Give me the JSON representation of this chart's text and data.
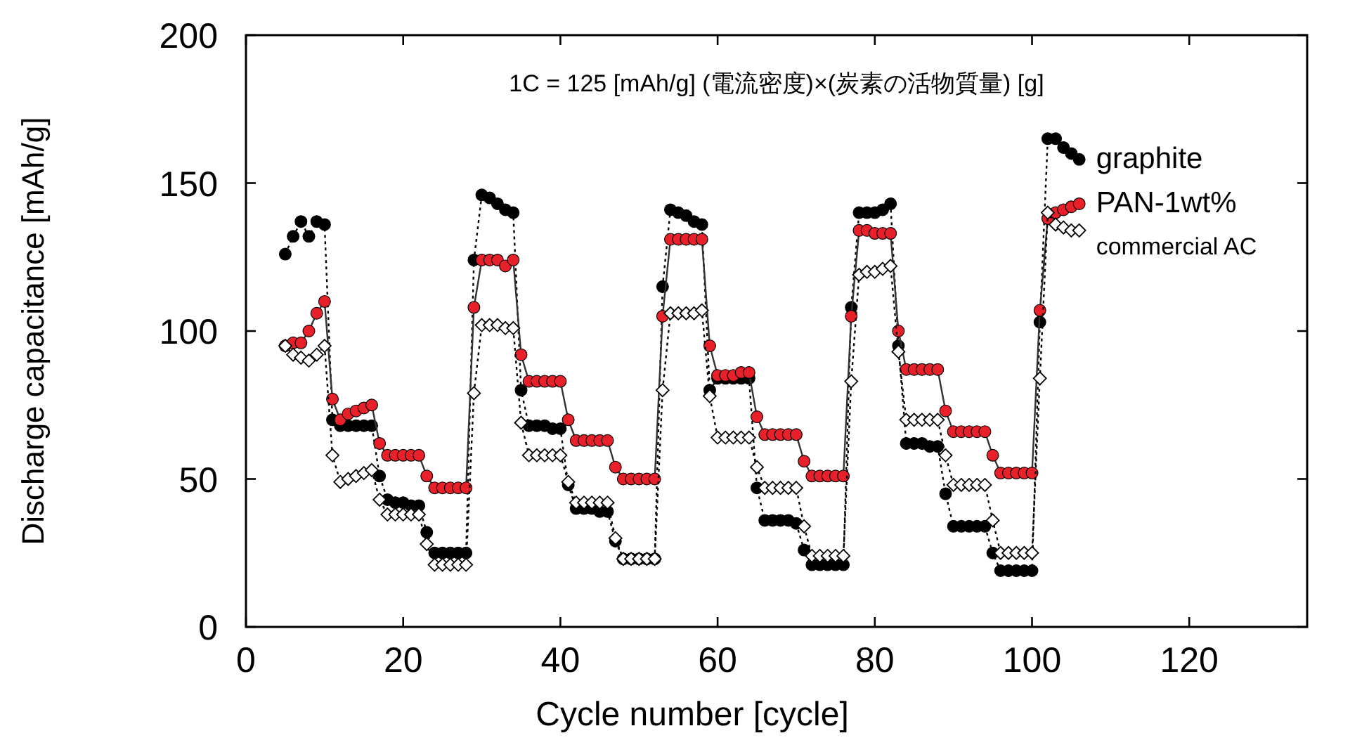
{
  "chart_data": {
    "type": "line",
    "xlabel": "Cycle number [cycle]",
    "ylabel": "Discharge capacitance [mAh/g]",
    "annotations": [
      "1C = 125 [mAh/g] (電流密度)×(炭素の活物質量) [g]"
    ],
    "x": [
      5,
      6,
      7,
      8,
      9,
      10,
      11,
      12,
      13,
      14,
      15,
      16,
      17,
      18,
      19,
      20,
      21,
      22,
      23,
      24,
      25,
      26,
      27,
      28,
      29,
      30,
      31,
      32,
      33,
      34,
      35,
      36,
      37,
      38,
      39,
      40,
      41,
      42,
      43,
      44,
      45,
      46,
      47,
      48,
      49,
      50,
      51,
      52,
      53,
      54,
      55,
      56,
      57,
      58,
      59,
      60,
      61,
      62,
      63,
      64,
      65,
      66,
      67,
      68,
      69,
      70,
      71,
      72,
      73,
      74,
      75,
      76,
      77,
      78,
      79,
      80,
      81,
      82,
      83,
      84,
      85,
      86,
      87,
      88,
      89,
      90,
      91,
      92,
      93,
      94,
      95,
      96,
      97,
      98,
      99,
      100,
      101,
      102,
      103,
      104,
      105,
      106
    ],
    "xlim": [
      0,
      135
    ],
    "xticks": [
      0,
      20,
      40,
      60,
      80,
      100,
      120
    ],
    "ylim": [
      0,
      200
    ],
    "yticks": [
      0,
      50,
      100,
      150,
      200
    ],
    "grid": false,
    "legend": "top right",
    "series": [
      {
        "name": "graphite",
        "color": "#000000",
        "marker": "circle",
        "line_style": "dotted",
        "values": [
          126,
          132,
          137,
          132,
          137,
          136,
          70,
          68,
          68,
          68,
          68,
          68,
          51,
          43,
          42,
          42,
          41,
          41,
          32,
          25,
          25,
          25,
          25,
          25,
          124,
          146,
          145,
          143,
          141,
          140,
          80,
          68,
          68,
          68,
          67,
          67,
          48,
          40,
          40,
          40,
          39,
          39,
          29,
          23,
          23,
          23,
          23,
          23,
          115,
          141,
          140,
          139,
          137,
          136,
          80,
          84,
          84,
          84,
          84,
          84,
          47,
          36,
          36,
          36,
          36,
          35,
          26,
          21,
          21,
          21,
          21,
          21,
          108,
          140,
          140,
          140,
          141,
          143,
          95,
          62,
          62,
          62,
          61,
          61,
          45,
          34,
          34,
          34,
          34,
          34,
          25,
          19,
          19,
          19,
          19,
          19,
          103,
          165,
          165,
          162,
          160,
          158
        ]
      },
      {
        "name": "PAN-1wt%",
        "color": "#e8202a",
        "marker": "circle",
        "line_style": "solid",
        "values": [
          95,
          96,
          96,
          100,
          106,
          110,
          77,
          70,
          72,
          73,
          74,
          75,
          62,
          58,
          58,
          58,
          58,
          58,
          51,
          47,
          47,
          47,
          47,
          47,
          108,
          124,
          124,
          124,
          122,
          124,
          92,
          83,
          83,
          83,
          83,
          83,
          70,
          63,
          63,
          63,
          63,
          63,
          54,
          50,
          50,
          50,
          50,
          50,
          105,
          131,
          131,
          131,
          131,
          131,
          95,
          85,
          85,
          85,
          86,
          86,
          71,
          65,
          65,
          65,
          65,
          65,
          56,
          51,
          51,
          51,
          51,
          51,
          105,
          134,
          134,
          133,
          133,
          133,
          100,
          87,
          87,
          87,
          87,
          87,
          73,
          66,
          66,
          66,
          66,
          66,
          58,
          52,
          52,
          52,
          52,
          52,
          107,
          138,
          140,
          141,
          142,
          143
        ]
      },
      {
        "name": "commercial AC",
        "color": "#000000",
        "marker": "diamond",
        "line_style": "dotted",
        "values": [
          95,
          92,
          91,
          90,
          92,
          95,
          58,
          49,
          50,
          51,
          52,
          53,
          43,
          38,
          38,
          38,
          38,
          38,
          28,
          21,
          21,
          21,
          21,
          21,
          79,
          102,
          102,
          102,
          101,
          101,
          69,
          58,
          58,
          58,
          58,
          58,
          49,
          42,
          42,
          42,
          42,
          42,
          30,
          23,
          23,
          23,
          23,
          23,
          80,
          106,
          106,
          106,
          106,
          107,
          78,
          64,
          64,
          64,
          64,
          64,
          54,
          47,
          47,
          47,
          47,
          47,
          34,
          24,
          24,
          24,
          24,
          24,
          83,
          119,
          120,
          120,
          121,
          122,
          93,
          70,
          70,
          70,
          70,
          70,
          58,
          48,
          48,
          48,
          48,
          48,
          36,
          25,
          25,
          25,
          25,
          25,
          84,
          140,
          136,
          135,
          134,
          134
        ]
      }
    ]
  }
}
